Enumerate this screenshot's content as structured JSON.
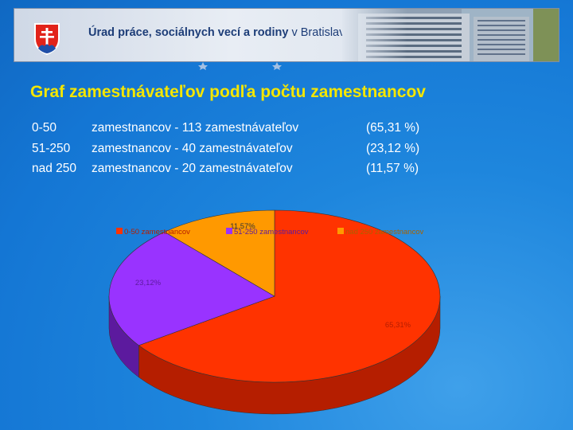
{
  "header": {
    "title_bold": "Úrad práce, sociálnych vecí a rodiny",
    "title_light": "v Bratislave"
  },
  "heading": "Graf zamestnávateľov podľa počtu zamestnancov",
  "summary_rows": [
    {
      "range": "0-50",
      "text": "zamestnancov - 113 zamestnávateľov",
      "percent": "(65,31 %)"
    },
    {
      "range": "51-250",
      "text": "zamestnancov -   40 zamestnávateľov",
      "percent": "(23,12 %)"
    },
    {
      "range": "nad 250",
      "text": "zamestnancov -   20 zamestnávateľov",
      "percent": "(11,57 %)"
    }
  ],
  "chart_data": {
    "type": "pie",
    "three_d": true,
    "categories": [
      "0-50   zamestnancov",
      "51-250   zamestnancov",
      "nad 250   zamestnancov"
    ],
    "values": [
      65.31,
      23.12,
      11.57
    ],
    "data_labels": [
      "65,31%",
      "23,12%",
      "11,57%"
    ],
    "colors": [
      "#ff3300",
      "#9933ff",
      "#ff9900"
    ],
    "side_colors": [
      "#b51e00",
      "#5c1a9e",
      "#a86300"
    ],
    "legend_position": "top"
  },
  "colors": {
    "heading": "#f4e600",
    "background": "#1a7fd9",
    "banner_text": "#1d3d78"
  }
}
